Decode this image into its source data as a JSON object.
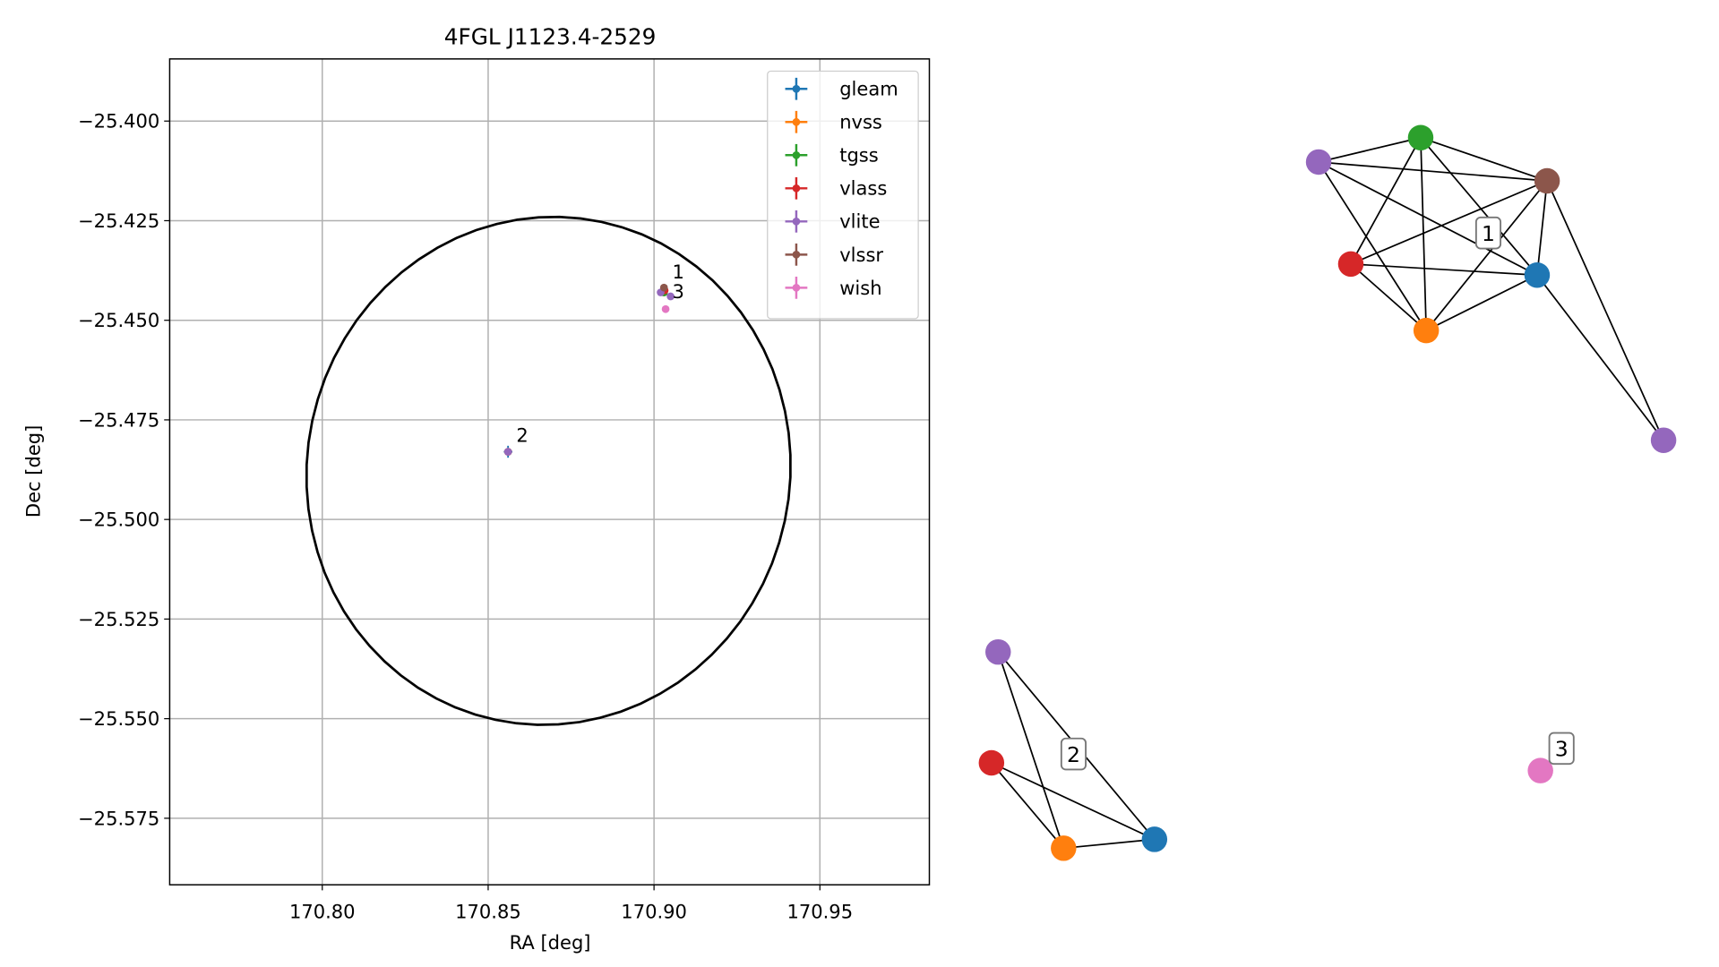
{
  "chart_data": {
    "type": "scatter",
    "title": "4FGL J1123.4-2529",
    "x_label": "RA [deg]",
    "y_label": "Dec [deg]",
    "xlim": [
      170.754,
      170.983
    ],
    "ylim": [
      -25.5917,
      -25.3844
    ],
    "xticks": [
      {
        "value": 170.8,
        "label": "170.80"
      },
      {
        "value": 170.85,
        "label": "170.85"
      },
      {
        "value": 170.9,
        "label": "170.90"
      },
      {
        "value": 170.95,
        "label": "170.95"
      }
    ],
    "yticks": [
      {
        "value": -25.4,
        "label": "−25.400"
      },
      {
        "value": -25.425,
        "label": "−25.425"
      },
      {
        "value": -25.45,
        "label": "−25.450"
      },
      {
        "value": -25.475,
        "label": "−25.475"
      },
      {
        "value": -25.5,
        "label": "−25.500"
      },
      {
        "value": -25.525,
        "label": "−25.525"
      },
      {
        "value": -25.55,
        "label": "−25.550"
      },
      {
        "value": -25.575,
        "label": "−25.575"
      }
    ],
    "grid": true,
    "legend": "upper right",
    "ellipse": {
      "ra": 170.8682,
      "dec": -25.4878,
      "a": 0.0728,
      "b": 0.0639,
      "angle": 12,
      "color": "#000000"
    },
    "series": [
      {
        "name": "gleam",
        "color": "#1f77b4",
        "x": [
          170.856,
          170.903
        ],
        "y": [
          -25.483,
          -25.443
        ],
        "xerr": [
          0.0013,
          0.0006
        ],
        "yerr": [
          0.0015,
          0.0006
        ]
      },
      {
        "name": "nvss",
        "color": "#ff7f0e",
        "x": [
          170.856,
          170.903
        ],
        "y": [
          -25.483,
          -25.443
        ],
        "xerr": [
          0.0006,
          0.0004
        ],
        "yerr": [
          0.0006,
          0.0004
        ]
      },
      {
        "name": "tgss",
        "color": "#2ca02c",
        "x": [
          170.903
        ],
        "y": [
          -25.443
        ],
        "xerr": [
          0.0004
        ],
        "yerr": [
          0.0004
        ]
      },
      {
        "name": "vlass",
        "color": "#d62728",
        "x": [
          170.856,
          170.9032
        ],
        "y": [
          -25.483,
          -25.4425
        ],
        "xerr": [
          0.0002,
          0.0002
        ],
        "yerr": [
          0.0002,
          0.0002
        ]
      },
      {
        "name": "vlite",
        "color": "#9467bd",
        "x": [
          170.856,
          170.902,
          170.905
        ],
        "y": [
          -25.483,
          -25.443,
          -25.444
        ],
        "xerr": [
          0.0008,
          0.0005,
          0.0005
        ],
        "yerr": [
          0.0008,
          0.0005,
          0.0005
        ]
      },
      {
        "name": "vlssr",
        "color": "#8c564b",
        "x": [
          170.903
        ],
        "y": [
          -25.4418
        ],
        "xerr": [
          0.0004
        ],
        "yerr": [
          0.0004
        ]
      },
      {
        "name": "wish",
        "color": "#e377c2",
        "x": [
          170.9035
        ],
        "y": [
          -25.4472
        ],
        "xerr": [
          0.0003
        ],
        "yerr": [
          0.0003
        ]
      }
    ],
    "annotations": [
      {
        "text": "1",
        "x": 170.9055,
        "y": -25.4395
      },
      {
        "text": "2",
        "x": 170.8585,
        "y": -25.4805
      },
      {
        "text": "3",
        "x": 170.9055,
        "y": -25.4445
      }
    ]
  },
  "graph": {
    "groups": [
      {
        "label": "1",
        "nodes": [
          "vlite",
          "tgss",
          "vlssr",
          "vlass",
          "gleam",
          "nvss",
          "vlite"
        ],
        "edges": [
          [
            0,
            1
          ],
          [
            0,
            2
          ],
          [
            0,
            4
          ],
          [
            0,
            5
          ],
          [
            1,
            3
          ],
          [
            1,
            5
          ],
          [
            1,
            4
          ],
          [
            1,
            2
          ],
          [
            2,
            3
          ],
          [
            2,
            5
          ],
          [
            2,
            4
          ],
          [
            2,
            6
          ],
          [
            3,
            4
          ],
          [
            3,
            5
          ],
          [
            4,
            5
          ],
          [
            4,
            6
          ]
        ]
      },
      {
        "label": "2",
        "nodes": [
          "vlite",
          "vlass",
          "nvss",
          "gleam"
        ],
        "edges": [
          [
            0,
            2
          ],
          [
            0,
            3
          ],
          [
            1,
            2
          ],
          [
            1,
            3
          ],
          [
            2,
            3
          ]
        ]
      },
      {
        "label": "3",
        "nodes": [
          "wish"
        ],
        "edges": []
      }
    ]
  }
}
